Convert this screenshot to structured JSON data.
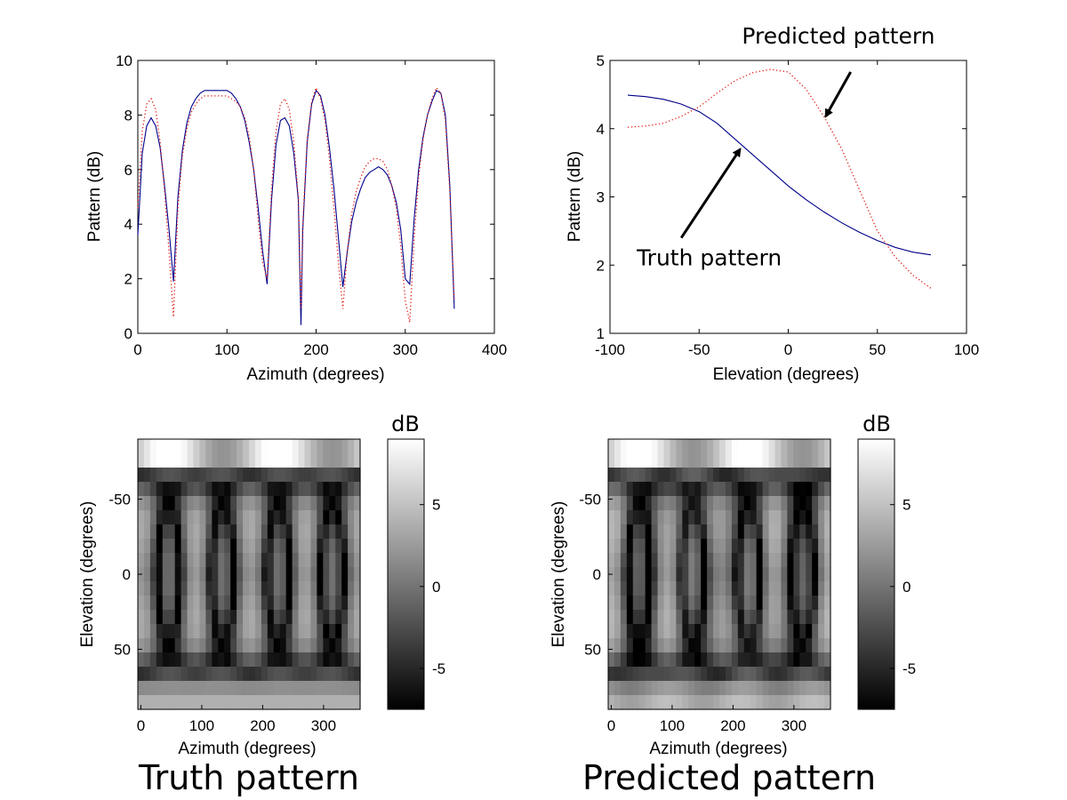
{
  "chart_data": [
    {
      "id": "azimuth-cut",
      "type": "line",
      "xlabel": "Azimuth (degrees)",
      "ylabel": "Pattern (dB)",
      "xlim": [
        0,
        400
      ],
      "ylim": [
        0,
        10
      ],
      "xticks": [
        0,
        100,
        200,
        300,
        400
      ],
      "yticks": [
        0,
        2,
        4,
        6,
        8,
        10
      ],
      "grid": false,
      "series": [
        {
          "style": "solid",
          "color": "#00008b",
          "x": [
            0,
            5,
            10,
            15,
            20,
            25,
            30,
            35,
            40,
            45,
            50,
            55,
            60,
            65,
            70,
            75,
            80,
            85,
            90,
            95,
            100,
            105,
            110,
            115,
            120,
            125,
            130,
            135,
            140,
            145,
            150,
            155,
            160,
            165,
            170,
            175,
            180,
            183,
            185,
            190,
            195,
            200,
            205,
            210,
            215,
            220,
            225,
            230,
            235,
            240,
            245,
            250,
            255,
            260,
            265,
            270,
            275,
            280,
            285,
            290,
            295,
            300,
            305,
            310,
            315,
            320,
            325,
            330,
            335,
            340,
            345,
            350,
            355
          ],
          "y": [
            3.6,
            6.6,
            7.6,
            7.9,
            7.6,
            6.8,
            5.4,
            3.8,
            1.9,
            5.0,
            6.7,
            7.7,
            8.3,
            8.6,
            8.8,
            8.9,
            8.9,
            8.9,
            8.9,
            8.9,
            8.9,
            8.8,
            8.6,
            8.3,
            7.8,
            7.0,
            6.0,
            4.6,
            3.0,
            1.8,
            4.9,
            6.9,
            7.8,
            7.9,
            7.6,
            6.6,
            4.9,
            0.3,
            3.8,
            7.0,
            8.4,
            8.9,
            8.7,
            8.0,
            6.8,
            5.3,
            3.5,
            1.7,
            3.0,
            4.1,
            4.8,
            5.3,
            5.7,
            5.9,
            6.0,
            6.1,
            6.0,
            5.8,
            5.4,
            4.8,
            3.8,
            2.0,
            1.8,
            4.2,
            6.0,
            7.2,
            8.0,
            8.5,
            8.9,
            8.8,
            8.0,
            5.4,
            0.9
          ]
        },
        {
          "style": "dotted",
          "color": "#e0201a",
          "x": [
            0,
            5,
            10,
            15,
            20,
            25,
            30,
            35,
            40,
            45,
            50,
            55,
            60,
            65,
            70,
            75,
            80,
            85,
            90,
            95,
            100,
            105,
            110,
            115,
            120,
            125,
            130,
            135,
            140,
            145,
            150,
            155,
            160,
            165,
            170,
            175,
            180,
            183,
            185,
            190,
            195,
            200,
            205,
            210,
            215,
            220,
            225,
            230,
            235,
            240,
            245,
            250,
            255,
            260,
            265,
            270,
            275,
            280,
            285,
            290,
            295,
            300,
            305,
            310,
            315,
            320,
            325,
            330,
            335,
            340,
            345,
            350,
            355
          ],
          "y": [
            4.6,
            7.4,
            8.4,
            8.6,
            8.2,
            7.0,
            5.2,
            3.0,
            0.6,
            4.6,
            6.5,
            7.5,
            8.1,
            8.4,
            8.6,
            8.7,
            8.7,
            8.7,
            8.7,
            8.7,
            8.7,
            8.6,
            8.5,
            8.3,
            7.9,
            7.2,
            6.0,
            4.2,
            2.6,
            2.0,
            5.3,
            7.4,
            8.4,
            8.6,
            8.2,
            7.0,
            5.0,
            0.9,
            4.0,
            7.1,
            8.5,
            9.0,
            8.6,
            7.8,
            6.4,
            4.6,
            2.6,
            0.9,
            3.0,
            4.4,
            5.2,
            5.7,
            6.1,
            6.3,
            6.4,
            6.4,
            6.3,
            6.0,
            5.4,
            4.6,
            3.2,
            1.2,
            0.4,
            3.5,
            5.7,
            7.1,
            8.0,
            8.6,
            9.0,
            8.8,
            7.8,
            5.2,
            1.2
          ]
        }
      ]
    },
    {
      "id": "elevation-cut",
      "type": "line",
      "xlabel": "Elevation (degrees)",
      "ylabel": "Pattern (dB)",
      "xlim": [
        -100,
        100
      ],
      "ylim": [
        1,
        5
      ],
      "xticks": [
        -100,
        -50,
        0,
        50,
        100
      ],
      "yticks": [
        1,
        2,
        3,
        4,
        5
      ],
      "grid": false,
      "annotations": [
        {
          "text": "Predicted pattern",
          "text_at": [
            -26,
            5.25
          ],
          "arrow_from": [
            35,
            4.83
          ],
          "arrow_to": [
            21,
            4.18
          ]
        },
        {
          "text": "Truth pattern",
          "text_at": [
            -85,
            2.0
          ],
          "arrow_from": [
            -60,
            2.4
          ],
          "arrow_to": [
            -27,
            3.7
          ]
        }
      ],
      "series": [
        {
          "name": "Truth pattern",
          "style": "solid",
          "color": "#00008b",
          "x": [
            -90,
            -80,
            -70,
            -60,
            -50,
            -40,
            -30,
            -20,
            -10,
            0,
            10,
            20,
            30,
            40,
            50,
            60,
            70,
            80
          ],
          "y": [
            4.49,
            4.47,
            4.43,
            4.36,
            4.25,
            4.08,
            3.85,
            3.62,
            3.39,
            3.16,
            2.96,
            2.78,
            2.62,
            2.48,
            2.36,
            2.26,
            2.19,
            2.15
          ]
        },
        {
          "name": "Predicted pattern",
          "style": "dotted",
          "color": "#e0201a",
          "x": [
            -90,
            -80,
            -70,
            -60,
            -50,
            -40,
            -30,
            -20,
            -10,
            0,
            10,
            20,
            30,
            40,
            50,
            60,
            70,
            80
          ],
          "y": [
            4.02,
            4.04,
            4.08,
            4.18,
            4.32,
            4.52,
            4.7,
            4.82,
            4.87,
            4.83,
            4.58,
            4.18,
            3.7,
            3.1,
            2.5,
            2.12,
            1.85,
            1.66
          ]
        }
      ]
    },
    {
      "id": "truth-heatmap",
      "type": "heatmap",
      "caption": "Truth pattern",
      "colorbar_label": "dB",
      "colorbar_ticks": [
        5,
        0,
        -5
      ],
      "clim": [
        -7.5,
        9
      ],
      "xlabel": "Azimuth (degrees)",
      "ylabel": "Elevation (degrees)",
      "xlim": [
        -5,
        360
      ],
      "ylim": [
        -90,
        90
      ],
      "xticks": [
        0,
        100,
        200,
        300
      ],
      "yticks": [
        -50,
        0,
        50
      ],
      "colormap": "gray"
    },
    {
      "id": "predicted-heatmap",
      "type": "heatmap",
      "caption": "Predicted pattern",
      "colorbar_label": "dB",
      "colorbar_ticks": [
        5,
        0,
        -5
      ],
      "clim": [
        -7.5,
        9
      ],
      "xlabel": "Azimuth (degrees)",
      "ylabel": "Elevation (degrees)",
      "xlim": [
        -5,
        360
      ],
      "ylim": [
        -90,
        90
      ],
      "xticks": [
        0,
        100,
        200,
        300
      ],
      "yticks": [
        -50,
        0,
        50
      ],
      "colormap": "gray"
    }
  ]
}
